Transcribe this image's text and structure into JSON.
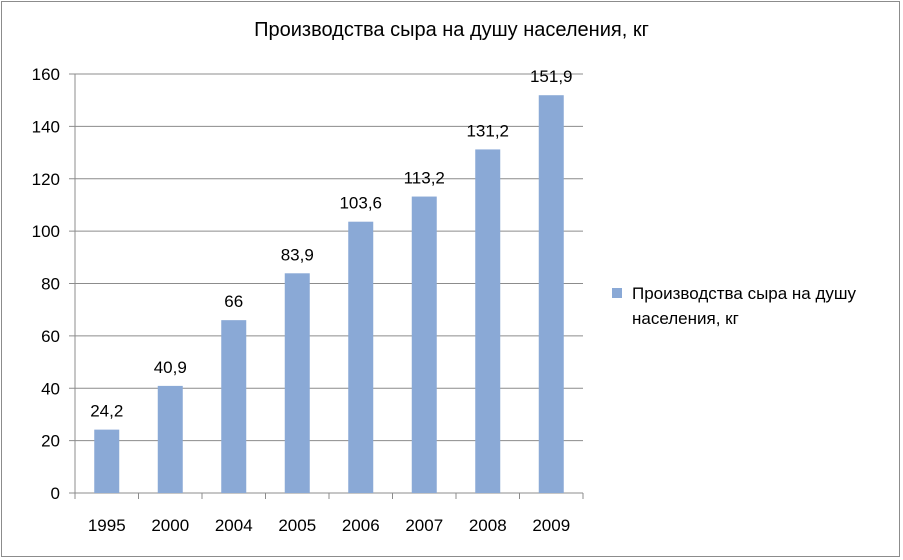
{
  "chart_data": {
    "type": "bar",
    "title": "Производства сыра на душу населения, кг",
    "categories": [
      "1995",
      "2000",
      "2004",
      "2005",
      "2006",
      "2007",
      "2008",
      "2009"
    ],
    "series": [
      {
        "name": "Производства сыра на душу населения, кг",
        "values": [
          24.2,
          40.9,
          66,
          83.9,
          103.6,
          113.2,
          131.2,
          151.9
        ],
        "labels": [
          "24,2",
          "40,9",
          "66",
          "83,9",
          "103,6",
          "113,2",
          "131,2",
          "151,9"
        ],
        "color": "#8aa9d6"
      }
    ],
    "ylim": [
      0,
      160
    ],
    "yticks": [
      "0",
      "20",
      "40",
      "60",
      "80",
      "100",
      "120",
      "140",
      "160"
    ],
    "grid": true,
    "legend": "right"
  }
}
